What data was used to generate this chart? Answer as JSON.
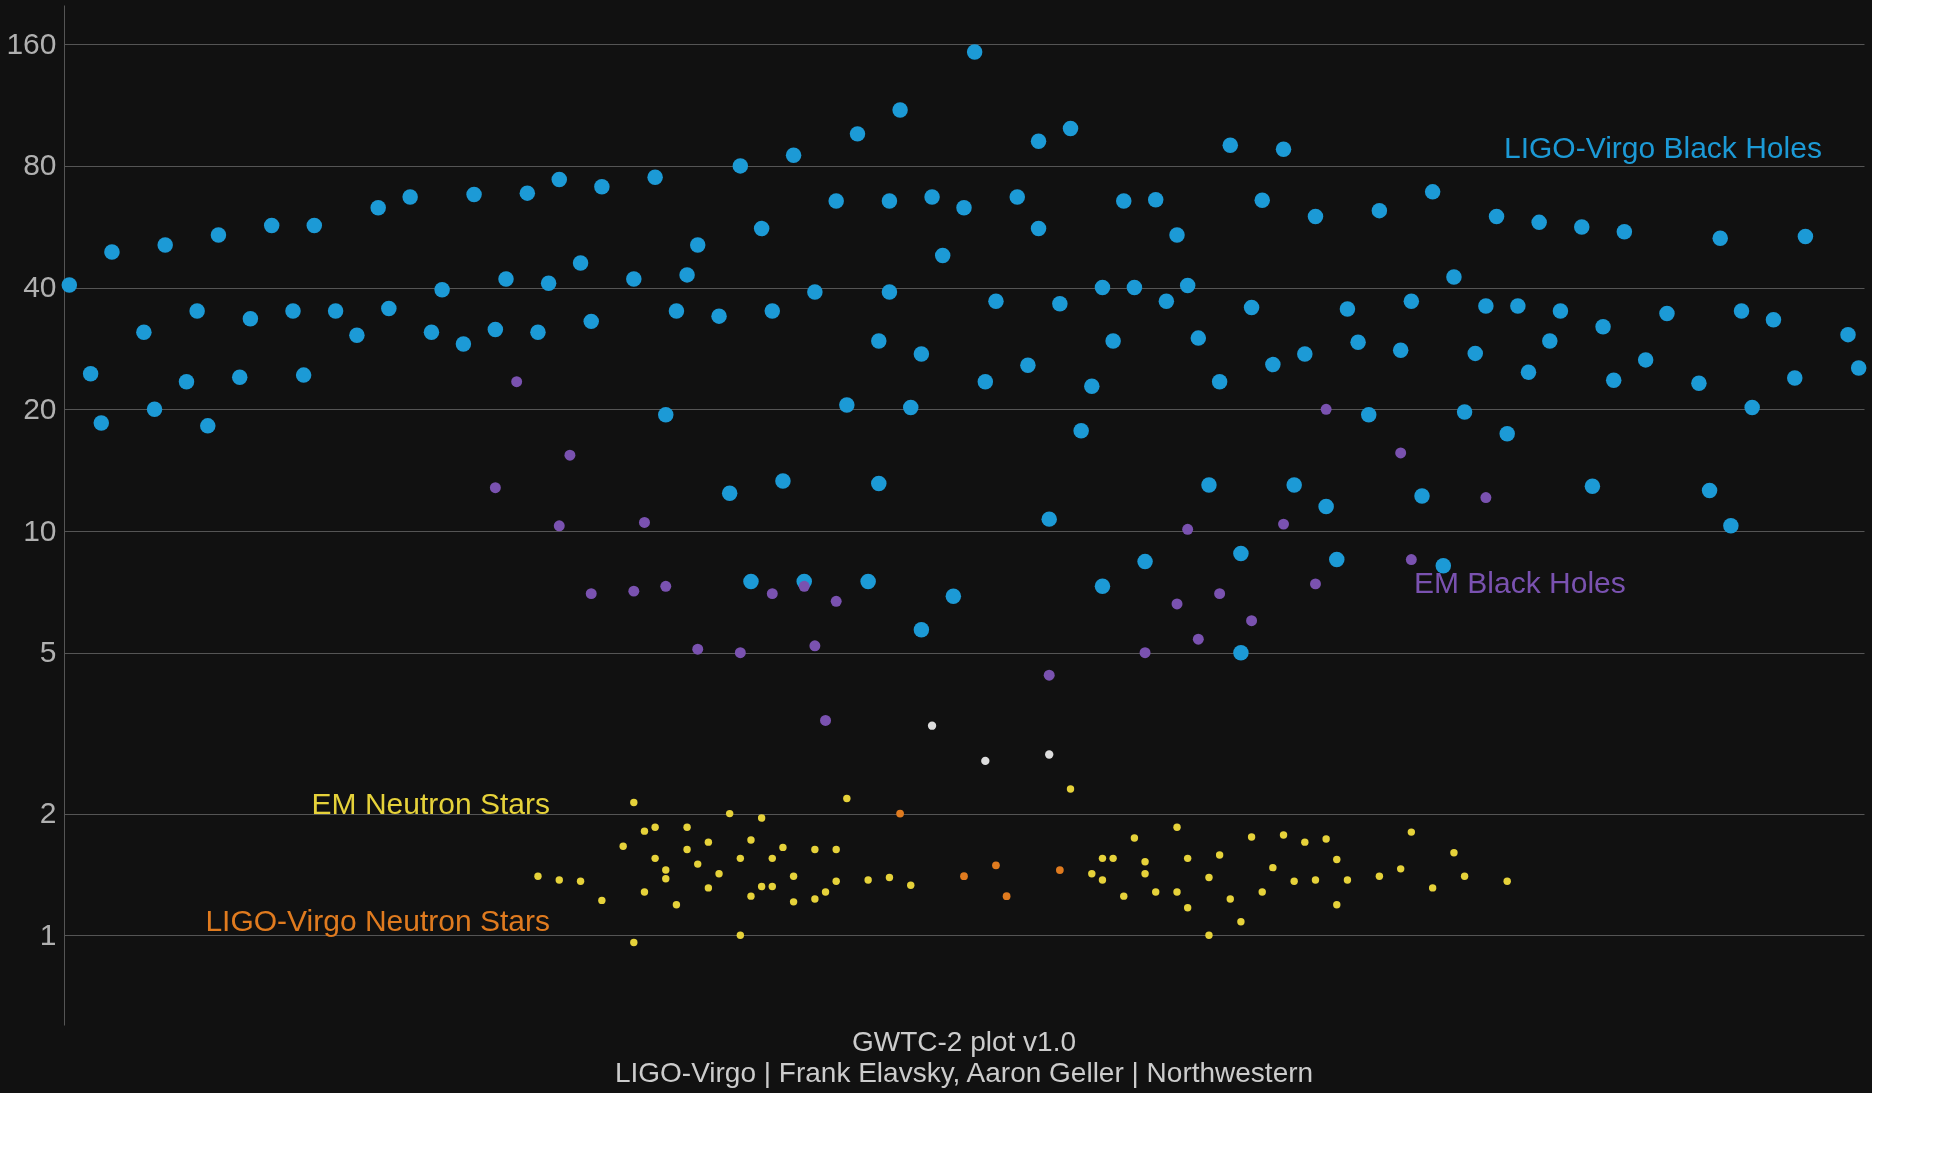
{
  "chart_data": {
    "type": "scatter",
    "log": "y",
    "grid": "y",
    "tick_labels": "y",
    "marker": "circle",
    "ylim": [
      0.6,
      200
    ],
    "yticks": [
      1,
      2,
      5,
      10,
      20,
      40,
      80,
      160
    ],
    "annotations": [
      "GWTC-2 plot v1.0",
      "LIGO-Virgo | Frank Elavsky, Aaron Geller | Northwestern"
    ],
    "categories": [
      null,
      null,
      null,
      null,
      null,
      null,
      null,
      null,
      null,
      null,
      null,
      null,
      null,
      null,
      null,
      null,
      null,
      null,
      null,
      null,
      null,
      null,
      null,
      null,
      null,
      null,
      null,
      null,
      null,
      null,
      null,
      null,
      null,
      null,
      null,
      null,
      null,
      null,
      null,
      null,
      null,
      null,
      null,
      null,
      null,
      null,
      null,
      null,
      null,
      null,
      null,
      null,
      null,
      null,
      null,
      null,
      null,
      null,
      null,
      null,
      null,
      null,
      null,
      null,
      null,
      null,
      null,
      null,
      null,
      null,
      null,
      null,
      null,
      null,
      null,
      null,
      null,
      null,
      null,
      null,
      null,
      null,
      null,
      null,
      null,
      null,
      null,
      null,
      null,
      null,
      null,
      null,
      null,
      null,
      null,
      null,
      null,
      null,
      null,
      null,
      null,
      null,
      null,
      null,
      null,
      null,
      null,
      null,
      null,
      null,
      null,
      null,
      null,
      null,
      null,
      null,
      null,
      null,
      null,
      null,
      null,
      null,
      null,
      null,
      null,
      null,
      null,
      null,
      null,
      null,
      null,
      null,
      null,
      null,
      null,
      null,
      null,
      null,
      null,
      null,
      null,
      null,
      null,
      null,
      null,
      null,
      null,
      null,
      null,
      null,
      null,
      null,
      null,
      null,
      null,
      null,
      null,
      null,
      null,
      null,
      null,
      null,
      null,
      null,
      null,
      null,
      null,
      null,
      null
    ],
    "series": [
      {
        "name": "LIGO-Virgo Black Holes",
        "color": "#1c9ad6",
        "values": [
          40.6,
          null,
          24.5,
          18.5,
          49,
          null,
          null,
          31,
          20,
          51,
          null,
          23.4,
          35,
          18.2,
          54,
          null,
          24,
          33.5,
          null,
          57,
          null,
          35,
          24.3,
          57,
          null,
          35,
          null,
          30.5,
          null,
          63,
          35.5,
          null,
          67,
          null,
          31,
          39.5,
          null,
          29,
          68,
          null,
          31.5,
          42,
          null,
          68.5,
          31,
          41,
          74,
          null,
          46,
          33,
          71,
          null,
          null,
          42,
          null,
          75,
          19.4,
          35,
          43,
          51,
          null,
          34,
          12.4,
          80,
          7.5,
          56,
          35,
          13.3,
          85,
          7.5,
          39,
          null,
          65.5,
          20.5,
          96,
          7.5,
          29.5,
          39,
          110,
          20.2,
          27.4,
          67,
          48,
          6.9,
          63,
          153,
          23.4,
          37,
          null,
          67,
          25.7,
          92,
          10.7,
          36.5,
          99,
          17.7,
          22.8,
          7.3,
          29.5,
          65.5,
          40,
          8.4,
          66,
          37,
          54,
          40.5,
          30,
          13,
          23.4,
          90,
          5,
          35.7,
          65.8,
          25.8,
          88,
          13,
          27.4,
          60,
          11.5,
          8.5,
          35.4,
          29.3,
          19.4,
          62,
          null,
          28,
          37,
          12.2,
          69,
          8.2,
          42.5,
          19.7,
          27.5,
          36,
          60,
          17.4,
          36,
          24.7,
          58,
          29.5,
          35,
          null,
          56.5,
          12.9,
          32,
          23.6,
          55,
          null,
          26.5,
          null,
          34.5,
          null,
          null,
          23.2,
          12.6,
          53,
          10.3,
          35,
          20.2,
          null,
          33.3,
          null,
          23.9,
          53.5,
          null,
          null,
          null,
          30.6,
          25.3
        ]
      },
      {
        "color": "#1c9ad6",
        "values": [
          null,
          null,
          null,
          null,
          null,
          null,
          null,
          null,
          null,
          null,
          null,
          null,
          null,
          null,
          null,
          null,
          null,
          null,
          null,
          null,
          null,
          null,
          null,
          null,
          null,
          null,
          null,
          null,
          null,
          null,
          null,
          null,
          null,
          null,
          null,
          null,
          null,
          null,
          null,
          null,
          null,
          null,
          null,
          null,
          null,
          null,
          null,
          null,
          null,
          null,
          null,
          null,
          null,
          null,
          null,
          null,
          null,
          null,
          null,
          null,
          null,
          null,
          null,
          null,
          null,
          null,
          null,
          null,
          null,
          null,
          null,
          null,
          null,
          null,
          null,
          null,
          13.1,
          65.5,
          null,
          null,
          5.7,
          null,
          null,
          null,
          null,
          null,
          null,
          null,
          null,
          null,
          null,
          56,
          null,
          null,
          null,
          null,
          null,
          40,
          null,
          null,
          null,
          null,
          null,
          null,
          null,
          null,
          null,
          null,
          null,
          null,
          8.8,
          null,
          null,
          null,
          null,
          null,
          null,
          null,
          null,
          null,
          null,
          null,
          null,
          null,
          null,
          null,
          null,
          null,
          null,
          null,
          null,
          null,
          null,
          null,
          null,
          null,
          null,
          null,
          null,
          null,
          null,
          null,
          null,
          null,
          null,
          null,
          null,
          null,
          null,
          null,
          null,
          null,
          null,
          null,
          null,
          null,
          null,
          null,
          null,
          null,
          null,
          null,
          null,
          null,
          null,
          null,
          null,
          null,
          null
        ]
      },
      {
        "name": "EM Black Holes",
        "color": "#7a52b0",
        "values": [
          null,
          null,
          null,
          null,
          null,
          null,
          null,
          null,
          null,
          null,
          null,
          null,
          null,
          null,
          null,
          null,
          null,
          null,
          null,
          null,
          null,
          null,
          null,
          null,
          null,
          null,
          null,
          null,
          null,
          null,
          null,
          null,
          null,
          null,
          null,
          null,
          null,
          null,
          null,
          null,
          12.8,
          null,
          23.4,
          null,
          null,
          null,
          10.3,
          15.4,
          null,
          7.0,
          null,
          null,
          null,
          7.1,
          10.5,
          null,
          7.3,
          null,
          null,
          5.1,
          null,
          null,
          null,
          5.0,
          null,
          null,
          7.0,
          null,
          null,
          7.3,
          5.2,
          3.4,
          6.7,
          null,
          null,
          null,
          null,
          null,
          null,
          null,
          null,
          null,
          null,
          null,
          null,
          null,
          null,
          null,
          null,
          null,
          null,
          null,
          4.4,
          null,
          null,
          null,
          null,
          null,
          null,
          null,
          null,
          5.0,
          null,
          null,
          6.6,
          10.1,
          5.4,
          null,
          7.0,
          null,
          null,
          6.0,
          null,
          null,
          10.4,
          null,
          null,
          7.4,
          20,
          null,
          null,
          null,
          null,
          null,
          null,
          15.6,
          8.5,
          null,
          null,
          null,
          null,
          null,
          null,
          12.1,
          null,
          null,
          null,
          null,
          null,
          null,
          null,
          null,
          null,
          null,
          null,
          null,
          null,
          null,
          null,
          null,
          null,
          null,
          null,
          null,
          null,
          null,
          null,
          null,
          null,
          null,
          null,
          null,
          null,
          null,
          null,
          null,
          null,
          null,
          null
        ]
      },
      {
        "color": "#dddddd",
        "values": [
          null,
          null,
          null,
          null,
          null,
          null,
          null,
          null,
          null,
          null,
          null,
          null,
          null,
          null,
          null,
          null,
          null,
          null,
          null,
          null,
          null,
          null,
          null,
          null,
          null,
          null,
          null,
          null,
          null,
          null,
          null,
          null,
          null,
          null,
          null,
          null,
          null,
          null,
          null,
          null,
          null,
          null,
          null,
          null,
          null,
          null,
          null,
          null,
          null,
          null,
          null,
          null,
          null,
          null,
          null,
          null,
          null,
          null,
          null,
          null,
          null,
          null,
          null,
          null,
          null,
          null,
          null,
          null,
          null,
          null,
          null,
          null,
          null,
          null,
          null,
          null,
          null,
          null,
          null,
          null,
          null,
          3.3,
          null,
          null,
          null,
          null,
          2.7,
          null,
          null,
          null,
          null,
          null,
          2.8,
          null,
          null,
          null,
          null,
          null,
          null,
          null,
          null,
          null,
          null,
          null,
          null,
          null,
          null,
          null,
          null,
          null,
          null,
          null,
          null,
          null,
          null,
          null,
          null,
          null,
          null,
          null,
          null,
          null,
          null,
          null,
          null,
          null,
          null,
          null,
          null,
          null,
          null,
          null,
          null,
          null,
          null,
          null,
          null,
          null,
          null,
          null,
          null,
          null,
          null,
          null,
          null,
          null,
          null,
          null,
          null,
          null,
          null,
          null,
          null,
          null,
          null,
          null,
          null,
          null,
          null,
          null,
          null,
          null,
          null,
          null,
          null,
          null,
          null,
          null,
          null
        ]
      },
      {
        "name": "EM Neutron Stars",
        "color": "#e6d23a",
        "values": [
          null,
          null,
          null,
          null,
          null,
          null,
          null,
          null,
          null,
          null,
          null,
          null,
          null,
          null,
          null,
          null,
          null,
          null,
          null,
          null,
          null,
          null,
          null,
          null,
          null,
          null,
          null,
          null,
          null,
          null,
          null,
          null,
          null,
          null,
          null,
          null,
          null,
          null,
          null,
          null,
          null,
          null,
          null,
          null,
          1.4,
          null,
          1.37,
          null,
          1.36,
          null,
          1.22,
          null,
          1.66,
          2.13,
          1.81,
          1.85,
          1.45,
          1.19,
          1.63,
          1.5,
          1.31,
          1.42,
          2.0,
          1.0,
          1.72,
          1.95,
          1.32,
          1.65,
          1.21,
          null,
          1.63,
          1.28,
          1.63,
          2.18,
          null,
          1.37,
          null,
          1.39,
          null,
          1.33,
          null,
          null,
          null,
          null,
          null,
          null,
          null,
          null,
          null,
          null,
          null,
          null,
          null,
          null,
          2.3,
          null,
          1.42,
          1.55,
          1.55,
          1.25,
          1.74,
          1.42,
          1.28,
          null,
          1.28,
          1.17,
          null,
          1.0,
          1.58,
          1.23,
          1.08,
          1.75,
          1.28,
          1.47,
          1.77,
          1.36,
          1.7,
          1.37,
          1.73,
          1.54,
          1.37,
          null,
          null,
          1.4,
          null,
          1.46,
          1.8,
          null,
          1.31,
          null,
          1.6,
          1.4,
          null,
          null,
          null,
          1.36,
          null,
          null,
          null,
          null,
          null,
          null,
          null,
          null,
          null,
          null,
          null,
          null,
          null,
          null,
          null,
          null,
          null,
          null,
          null,
          null,
          null,
          null,
          null,
          null,
          null,
          null,
          null,
          null,
          null,
          null,
          null,
          null,
          null
        ]
      },
      {
        "color": "#e6d23a",
        "values": [
          null,
          null,
          null,
          null,
          null,
          null,
          null,
          null,
          null,
          null,
          null,
          null,
          null,
          null,
          null,
          null,
          null,
          null,
          null,
          null,
          null,
          null,
          null,
          null,
          null,
          null,
          null,
          null,
          null,
          null,
          null,
          null,
          null,
          null,
          null,
          null,
          null,
          null,
          null,
          null,
          null,
          null,
          null,
          null,
          null,
          null,
          null,
          null,
          null,
          null,
          null,
          null,
          null,
          0.96,
          1.28,
          1.55,
          1.38,
          null,
          1.85,
          null,
          1.7,
          null,
          null,
          1.55,
          1.25,
          1.32,
          1.55,
          null,
          1.4,
          null,
          1.23,
          null,
          1.36,
          null,
          null,
          null,
          null,
          null,
          null,
          null,
          null,
          null,
          null,
          null,
          null,
          null,
          null,
          null,
          null,
          null,
          null,
          null,
          null,
          null,
          null,
          null,
          null,
          1.37,
          null,
          null,
          null,
          1.52,
          null,
          null,
          1.85,
          1.55,
          null,
          1.39,
          null,
          null,
          null,
          null,
          null,
          null,
          null,
          null,
          null,
          null,
          null,
          1.19,
          null,
          null,
          null,
          null,
          null,
          null,
          null,
          null,
          null,
          null,
          null,
          null,
          null,
          null,
          null,
          null,
          null,
          null,
          null,
          null,
          null,
          null,
          null,
          null,
          null,
          null,
          null,
          null,
          null,
          null,
          null,
          null,
          null,
          null,
          null,
          null,
          null,
          null,
          null,
          null,
          null,
          null,
          null,
          null,
          null,
          null,
          null,
          null,
          null
        ]
      },
      {
        "name": "LIGO-Virgo Neutron Stars",
        "color": "#e07b1f",
        "values": [
          null,
          null,
          null,
          null,
          null,
          null,
          null,
          null,
          null,
          null,
          null,
          null,
          null,
          null,
          null,
          null,
          null,
          null,
          null,
          null,
          null,
          null,
          null,
          null,
          null,
          null,
          null,
          null,
          null,
          null,
          null,
          null,
          null,
          null,
          null,
          null,
          null,
          null,
          null,
          null,
          null,
          null,
          null,
          null,
          null,
          null,
          null,
          null,
          null,
          null,
          null,
          null,
          null,
          null,
          null,
          null,
          null,
          null,
          null,
          null,
          null,
          null,
          null,
          null,
          null,
          null,
          null,
          null,
          null,
          null,
          null,
          null,
          null,
          null,
          null,
          null,
          null,
          null,
          2.0,
          null,
          null,
          null,
          null,
          null,
          1.4,
          null,
          null,
          1.49,
          1.25,
          null,
          null,
          null,
          null,
          1.45,
          null,
          null,
          null,
          null,
          null,
          null,
          null,
          null,
          null,
          null,
          null,
          null,
          null,
          null,
          null,
          null,
          null,
          null,
          null,
          null,
          null,
          null,
          null,
          null,
          null,
          null,
          null,
          null,
          null,
          null,
          null,
          null,
          null,
          null,
          null,
          null,
          null,
          null,
          null,
          null,
          null,
          null,
          null,
          null,
          null,
          null,
          null,
          null,
          null,
          null,
          null,
          null,
          null,
          null,
          null,
          null,
          null,
          null,
          null,
          null,
          null,
          null,
          null,
          null,
          null,
          null,
          null,
          null,
          null,
          null,
          null,
          null,
          null,
          null,
          null
        ]
      }
    ]
  }
}
